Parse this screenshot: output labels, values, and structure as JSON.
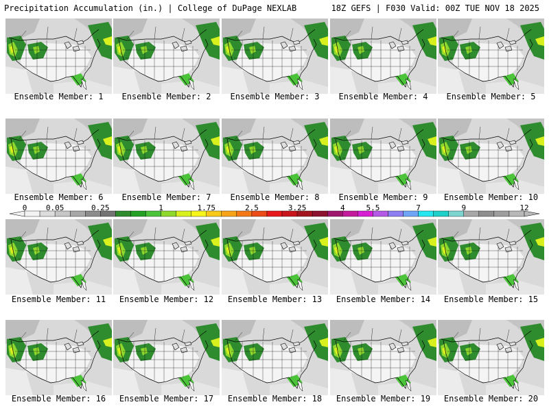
{
  "header": {
    "title": "Precipitation Accumulation (in.) | College of DuPage NEXLAB",
    "run_info": "18Z GEFS | F030 Valid: 00Z TUE NOV 18 2025"
  },
  "panels": [
    {
      "label": "Ensemble Member: 1"
    },
    {
      "label": "Ensemble Member: 2"
    },
    {
      "label": "Ensemble Member: 3"
    },
    {
      "label": "Ensemble Member: 4"
    },
    {
      "label": "Ensemble Member: 5"
    },
    {
      "label": "Ensemble Member: 6"
    },
    {
      "label": "Ensemble Member: 7"
    },
    {
      "label": "Ensemble Member: 8"
    },
    {
      "label": "Ensemble Member: 9"
    },
    {
      "label": "Ensemble Member: 10"
    },
    {
      "label": "Ensemble Member: 11"
    },
    {
      "label": "Ensemble Member: 12"
    },
    {
      "label": "Ensemble Member: 13"
    },
    {
      "label": "Ensemble Member: 14"
    },
    {
      "label": "Ensemble Member: 15"
    },
    {
      "label": "Ensemble Member: 16"
    },
    {
      "label": "Ensemble Member: 17"
    },
    {
      "label": "Ensemble Member: 18"
    },
    {
      "label": "Ensemble Member: 19"
    },
    {
      "label": "Ensemble Member: 20"
    }
  ],
  "colorbar": {
    "tick_labels": [
      "0",
      "0.05",
      "0.25",
      "1",
      "1.75",
      "2.5",
      "3.25",
      "4",
      "5.5",
      "7",
      "9",
      "12"
    ],
    "colors": [
      "#f2f2f2",
      "#dcdcdc",
      "#c6c6c6",
      "#a8a8a8",
      "#8c8c8c",
      "#737373",
      "#2e8b2e",
      "#23a023",
      "#4cc43a",
      "#8fd82d",
      "#d8f01e",
      "#f7f51b",
      "#f9c91a",
      "#f8a419",
      "#f47a18",
      "#ec4a16",
      "#e8181b",
      "#c9151c",
      "#a3161d",
      "#8b1330",
      "#a01770",
      "#c21c9c",
      "#d71fd4",
      "#b45ae6",
      "#8d7ff2",
      "#6fa6f7",
      "#26e6ef",
      "#1fd0c8",
      "#7ed4cf",
      "#a8a8a8",
      "#8f8f8f",
      "#9e9e9e",
      "#b8b8b8"
    ]
  }
}
